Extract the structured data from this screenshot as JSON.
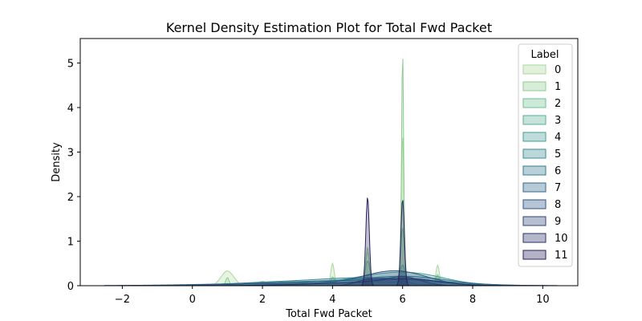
{
  "chart_data": {
    "type": "area",
    "title": "Kernel Density Estimation Plot for Total Fwd Packet",
    "xlabel": "Total Fwd Packet",
    "ylabel": "Density",
    "xlim": [
      -3.2,
      11
    ],
    "ylim": [
      0,
      5.55
    ],
    "xticks": [
      -2,
      0,
      2,
      4,
      6,
      8,
      10
    ],
    "yticks": [
      0,
      1,
      2,
      3,
      4,
      5
    ],
    "grid": false,
    "legend": {
      "title": "Label",
      "placement": "top-right"
    },
    "series": [
      {
        "name": "0",
        "color": "#a9d89b",
        "peaks": [
          [
            1,
            0.33,
            0.18
          ],
          [
            2,
            0.1,
            0.12
          ],
          [
            3,
            0.05,
            0.15
          ],
          [
            4,
            0.5,
            0.05
          ],
          [
            5,
            0.75,
            0.06
          ],
          [
            6,
            3.4,
            0.04
          ],
          [
            7,
            0.46,
            0.05
          ]
        ]
      },
      {
        "name": "1",
        "color": "#8ccc8e",
        "peaks": [
          [
            1,
            0.18,
            0.05
          ],
          [
            4,
            0.2,
            0.05
          ],
          [
            5,
            0.86,
            0.05
          ],
          [
            6,
            5.33,
            0.03
          ],
          [
            7,
            0.25,
            0.05
          ]
        ]
      },
      {
        "name": "2",
        "color": "#6fbf95",
        "peaks": [
          [
            5,
            0.45,
            0.06
          ],
          [
            6,
            1.2,
            0.05
          ],
          [
            5.5,
            0.15,
            0.6
          ]
        ]
      },
      {
        "name": "3",
        "color": "#58af96",
        "peaks": [
          [
            4.5,
            0.12,
            1.3
          ],
          [
            6,
            0.4,
            0.08
          ]
        ]
      },
      {
        "name": "4",
        "color": "#459e94",
        "peaks": [
          [
            5.5,
            0.22,
            1.2
          ],
          [
            6.5,
            0.12,
            0.9
          ]
        ]
      },
      {
        "name": "5",
        "color": "#3b8c93",
        "peaks": [
          [
            5.0,
            0.18,
            1.6
          ],
          [
            2.0,
            0.05,
            1.2
          ]
        ]
      },
      {
        "name": "6",
        "color": "#357b8f",
        "peaks": [
          [
            4.0,
            0.1,
            2.2
          ],
          [
            6.2,
            0.15,
            1.1
          ]
        ]
      },
      {
        "name": "7",
        "color": "#30698b",
        "peaks": [
          [
            3.5,
            0.07,
            2.5
          ],
          [
            6.0,
            0.1,
            1.4
          ]
        ]
      },
      {
        "name": "8",
        "color": "#2e5786",
        "peaks": [
          [
            5.8,
            0.32,
            0.9
          ],
          [
            3.0,
            0.05,
            1.8
          ]
        ]
      },
      {
        "name": "9",
        "color": "#2e4478",
        "peaks": [
          [
            5,
            0.12,
            0.35
          ],
          [
            6,
            0.2,
            0.5
          ]
        ]
      },
      {
        "name": "10",
        "color": "#2b3368",
        "peaks": [
          [
            4.8,
            0.06,
            1.6
          ],
          [
            6.2,
            0.12,
            0.8
          ]
        ]
      },
      {
        "name": "11",
        "color": "#27225b",
        "peaks": [
          [
            5,
            2.0,
            0.05
          ],
          [
            6,
            1.95,
            0.05
          ]
        ]
      }
    ]
  }
}
